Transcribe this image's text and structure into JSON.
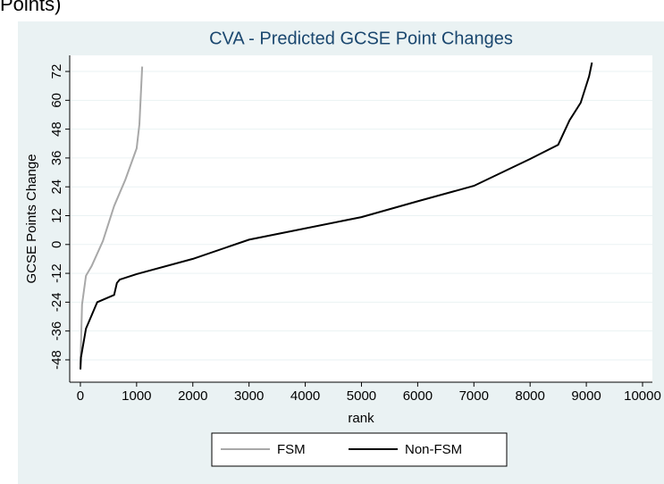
{
  "header": {
    "text": "Points)"
  },
  "chart_data": {
    "type": "line",
    "title": "CVA - Predicted GCSE Point Changes",
    "x_label": "rank",
    "y_label": "GCSE Points Change",
    "xlim": [
      -190,
      10175
    ],
    "ylim": [
      -57.3,
      78.7
    ],
    "xticks": [
      0,
      1000,
      2000,
      3000,
      4000,
      5000,
      6000,
      7000,
      8000,
      9000,
      10000
    ],
    "yticks": [
      -48,
      -36,
      -24,
      -12,
      0,
      12,
      24,
      36,
      48,
      60,
      72
    ],
    "grid": true,
    "legend": "bottom",
    "series": [
      {
        "name": "FSM",
        "color": "#a8a8a8",
        "x": [
          0,
          30,
          100,
          200,
          400,
          600,
          800,
          1000,
          1050,
          1100
        ],
        "values": [
          -50,
          -25,
          -13,
          -9,
          1.4,
          16,
          27,
          40,
          50,
          74
        ]
      },
      {
        "name": "Non-FSM",
        "color": "#000000",
        "x": [
          0,
          10,
          100,
          300,
          600,
          650,
          700,
          1000,
          2000,
          3000,
          5000,
          6000,
          7000,
          8000,
          8500,
          8700,
          8900,
          9050,
          9100
        ],
        "values": [
          -52,
          -47,
          -35,
          -24,
          -21,
          -16,
          -14.6,
          -12.3,
          -6,
          2,
          11.4,
          18,
          24.4,
          35.6,
          41.5,
          51.6,
          59,
          70,
          75.7
        ]
      }
    ]
  }
}
